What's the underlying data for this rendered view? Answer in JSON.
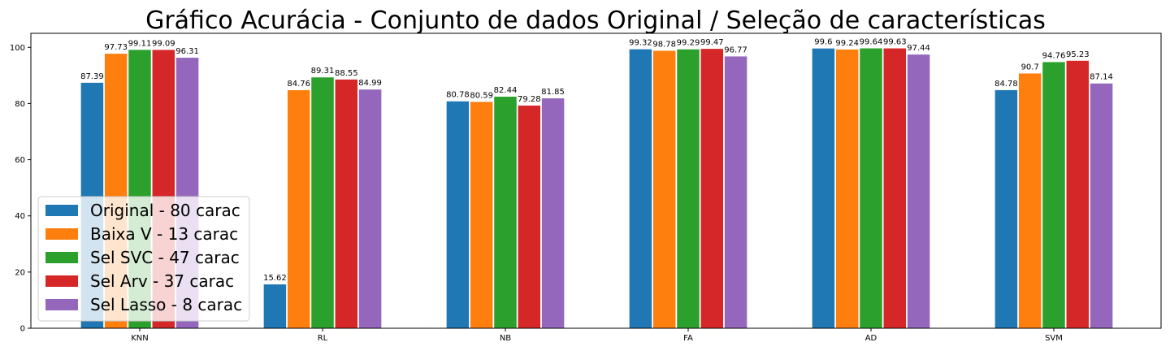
{
  "chart_data": {
    "type": "bar",
    "title": "Gráfico Acurácia - Conjunto de dados Original / Seleção de características",
    "xlabel": "",
    "ylabel": "",
    "ylim": [
      0,
      105
    ],
    "yticks": [
      0,
      20,
      40,
      60,
      80,
      100
    ],
    "categories": [
      "KNN",
      "RL",
      "NB",
      "FA",
      "AD",
      "SVM"
    ],
    "grid": false,
    "legend_position": "lower-left",
    "series": [
      {
        "name": "Original - 80 carac",
        "color": "#1f77b4",
        "values": [
          87.39,
          15.62,
          80.78,
          99.32,
          99.6,
          84.78
        ],
        "labels": [
          "87.39",
          "15.62",
          "80.78",
          "99.32",
          "99.6",
          "84.78"
        ]
      },
      {
        "name": "Baixa V - 13 carac",
        "color": "#ff7f0e",
        "values": [
          97.73,
          84.76,
          80.59,
          98.78,
          99.24,
          90.7
        ],
        "labels": [
          "97.73",
          "84.76",
          "80.59",
          "98.78",
          "99.24",
          "90.7"
        ]
      },
      {
        "name": "Sel SVC - 47 carac",
        "color": "#2ca02c",
        "values": [
          99.11,
          89.31,
          82.44,
          99.29,
          99.64,
          94.76
        ],
        "labels": [
          "99.11",
          "89.31",
          "82.44",
          "99.29",
          "99.64",
          "94.76"
        ]
      },
      {
        "name": "Sel Arv - 37 carac",
        "color": "#d62728",
        "values": [
          99.09,
          88.55,
          79.28,
          99.47,
          99.63,
          95.23
        ],
        "labels": [
          "99.09",
          "88.55",
          "79.28",
          "99.47",
          "99.63",
          "95.23"
        ]
      },
      {
        "name": "Sel Lasso - 8 carac",
        "color": "#9467bd",
        "values": [
          96.31,
          84.99,
          81.85,
          96.77,
          97.44,
          87.14
        ],
        "labels": [
          "96.31",
          "84.99",
          "81.85",
          "96.77",
          "97.44",
          "87.14"
        ]
      }
    ]
  }
}
